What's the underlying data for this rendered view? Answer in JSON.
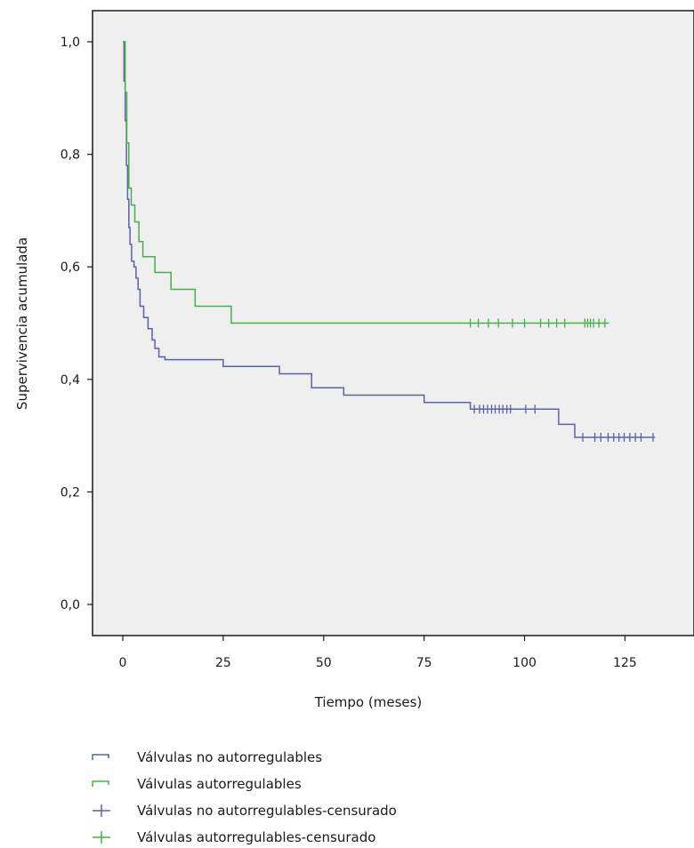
{
  "chart_data": {
    "type": "line",
    "subtype": "kaplan-meier step survival curve",
    "title": "",
    "xlabel": "Tiempo (meses)",
    "ylabel": "Supervivencia acumulada",
    "xlim": [
      -7,
      145
    ],
    "ylim": [
      -0.05,
      1.06
    ],
    "x_ticks": [
      0,
      25,
      50,
      75,
      100,
      125
    ],
    "x_tick_labels": [
      "0",
      "25",
      "50",
      "75",
      "100",
      "125"
    ],
    "y_ticks": [
      0.0,
      0.2,
      0.4,
      0.6,
      0.8,
      1.0
    ],
    "y_tick_labels": [
      "0,0",
      "0,2",
      "0,4",
      "0,6",
      "0,8",
      "1,0"
    ],
    "grid": false,
    "plot_background": "#efefef",
    "legend_position": "bottom",
    "legend": [
      {
        "label": "Válvulas no autorregulables",
        "kind": "line",
        "color": "#5b62a6"
      },
      {
        "label": "Válvulas autorregulables",
        "kind": "line",
        "color": "#43b14a"
      },
      {
        "label": "Válvulas no autorregulables-censurado",
        "kind": "censor",
        "color": "#5b62a6"
      },
      {
        "label": "Válvulas autorregulables-censurado",
        "kind": "censor",
        "color": "#43b14a"
      }
    ],
    "series": [
      {
        "name": "Válvulas no autorregulables",
        "color": "#5b62a6",
        "steps": [
          [
            0,
            1.0
          ],
          [
            0.3,
            0.93
          ],
          [
            0.6,
            0.86
          ],
          [
            0.9,
            0.78
          ],
          [
            1.2,
            0.72
          ],
          [
            1.5,
            0.67
          ],
          [
            1.8,
            0.64
          ],
          [
            2.2,
            0.61
          ],
          [
            2.8,
            0.6
          ],
          [
            3.3,
            0.58
          ],
          [
            3.8,
            0.56
          ],
          [
            4.3,
            0.53
          ],
          [
            5.2,
            0.51
          ],
          [
            6.3,
            0.49
          ],
          [
            7.3,
            0.47
          ],
          [
            8.0,
            0.455
          ],
          [
            9.0,
            0.44
          ],
          [
            10.5,
            0.435
          ],
          [
            25.0,
            0.423
          ],
          [
            39.0,
            0.41
          ],
          [
            47.0,
            0.385
          ],
          [
            55.0,
            0.372
          ],
          [
            75.0,
            0.359
          ],
          [
            86.5,
            0.347
          ],
          [
            108.5,
            0.32
          ],
          [
            112.5,
            0.297
          ],
          [
            132.5,
            0.297
          ]
        ],
        "censored_times": [
          87.5,
          88.8,
          89.8,
          90.8,
          91.8,
          92.7,
          93.7,
          94.6,
          95.6,
          96.5,
          100.3,
          102.6,
          114.5,
          117.5,
          119.0,
          120.8,
          122.2,
          123.5,
          124.8,
          126.2,
          127.6,
          129.0,
          132.0
        ]
      },
      {
        "name": "Válvulas autorregulables",
        "color": "#43b14a",
        "steps": [
          [
            0,
            1.0
          ],
          [
            0.6,
            0.91
          ],
          [
            1.0,
            0.82
          ],
          [
            1.5,
            0.74
          ],
          [
            2.1,
            0.71
          ],
          [
            3.0,
            0.68
          ],
          [
            4.0,
            0.645
          ],
          [
            5.0,
            0.618
          ],
          [
            8.0,
            0.59
          ],
          [
            12.0,
            0.56
          ],
          [
            18.0,
            0.53
          ],
          [
            27.0,
            0.5
          ],
          [
            121.0,
            0.5
          ]
        ],
        "censored_times": [
          86.5,
          88.5,
          91.0,
          93.5,
          97.0,
          100.0,
          104.0,
          106.0,
          108.0,
          110.0,
          115.0,
          115.7,
          116.4,
          117.2,
          118.5,
          120.0
        ]
      }
    ]
  }
}
